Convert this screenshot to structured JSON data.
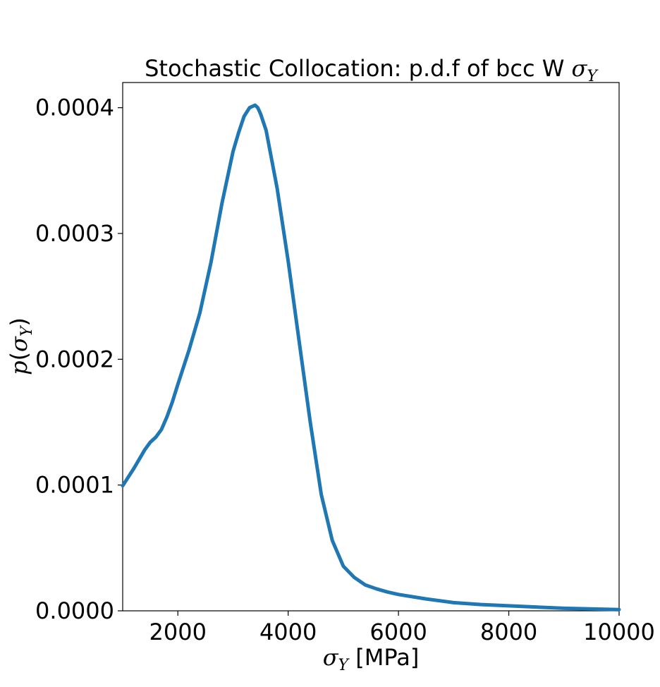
{
  "chart_data": {
    "type": "line",
    "title_prefix": "Stochastic Collocation: p.d.f of bcc W ",
    "title_symbol": "σ",
    "title_subscript": "Y",
    "xlabel_symbol": "σ",
    "xlabel_subscript": "Y",
    "xlabel_unit": " [MPa]",
    "ylabel_func": "p",
    "ylabel_symbol": "σ",
    "ylabel_subscript": "Y",
    "xlim": [
      1000,
      10000
    ],
    "ylim": [
      0,
      0.00042
    ],
    "x_ticks": [
      2000,
      4000,
      6000,
      8000,
      10000
    ],
    "x_tick_labels": [
      "2000",
      "4000",
      "6000",
      "8000",
      "10000"
    ],
    "y_ticks": [
      0,
      0.0001,
      0.0002,
      0.0003,
      0.0004
    ],
    "y_tick_labels": [
      "0.0000",
      "0.0001",
      "0.0002",
      "0.0003",
      "0.0004"
    ],
    "grid": false,
    "series": [
      {
        "color": "#1f77b4",
        "x": [
          1000,
          1200,
          1400,
          1500,
          1600,
          1700,
          1800,
          1900,
          2000,
          2200,
          2400,
          2600,
          2800,
          3000,
          3100,
          3200,
          3300,
          3400,
          3450,
          3500,
          3600,
          3800,
          4000,
          4200,
          4400,
          4600,
          4800,
          5000,
          5200,
          5400,
          5600,
          5800,
          6000,
          6500,
          7000,
          7500,
          8000,
          9000,
          10000
        ],
        "y": [
          9.94e-05,
          0.000113,
          0.000128,
          0.000134,
          0.000138,
          0.000144,
          0.000154,
          0.000166,
          0.00018,
          0.000207,
          0.000237,
          0.000277,
          0.000324,
          0.000365,
          0.00038,
          0.000393,
          0.0004,
          0.000402,
          0.0004,
          0.000395,
          0.000382,
          0.000336,
          0.000278,
          0.000214,
          0.00015,
          9.25e-05,
          5.6e-05,
          3.55e-05,
          2.65e-05,
          2.05e-05,
          1.75e-05,
          1.5e-05,
          1.3e-05,
          9.5e-06,
          6.5e-06,
          5e-06,
          4e-06,
          2e-06,
          1e-06
        ]
      }
    ]
  }
}
